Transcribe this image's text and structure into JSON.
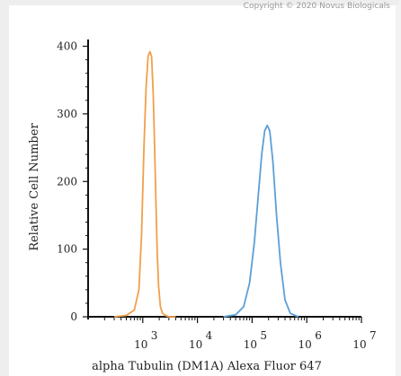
{
  "copyright": "Copyright © 2020 Novus Biologicals",
  "chart_data": {
    "type": "line",
    "title": "",
    "xlabel": "alpha Tubulin (DM1A) Alexa Fluor 647",
    "ylabel": "Relative Cell Number",
    "xscale": "log",
    "xlim": [
      100,
      10000000
    ],
    "ylim": [
      0,
      410
    ],
    "y_ticks": [
      0,
      100,
      200,
      300,
      400
    ],
    "x_ticks": [
      {
        "value": 1000,
        "base": "10",
        "exp": "3"
      },
      {
        "value": 10000,
        "base": "10",
        "exp": "4"
      },
      {
        "value": 100000,
        "base": "10",
        "exp": "5"
      },
      {
        "value": 1000000,
        "base": "10",
        "exp": "6"
      },
      {
        "value": 10000000,
        "base": "10",
        "exp": "7"
      }
    ],
    "grid": false,
    "series": [
      {
        "color": "#f0a04b",
        "x": [
          300,
          500,
          700,
          850,
          950,
          1050,
          1150,
          1250,
          1350,
          1450,
          1550,
          1650,
          1750,
          1850,
          1950,
          2100,
          2300,
          2600,
          3000,
          4000
        ],
        "y": [
          0,
          2,
          10,
          40,
          120,
          250,
          340,
          385,
          392,
          385,
          330,
          250,
          160,
          90,
          45,
          15,
          5,
          2,
          0,
          0
        ]
      },
      {
        "color": "#5b9fd8",
        "x": [
          30000,
          50000,
          70000,
          90000,
          110000,
          130000,
          150000,
          170000,
          190000,
          210000,
          240000,
          280000,
          330000,
          400000,
          500000,
          700000
        ],
        "y": [
          0,
          3,
          15,
          50,
          110,
          180,
          240,
          275,
          283,
          275,
          230,
          150,
          80,
          25,
          5,
          0
        ]
      }
    ]
  }
}
